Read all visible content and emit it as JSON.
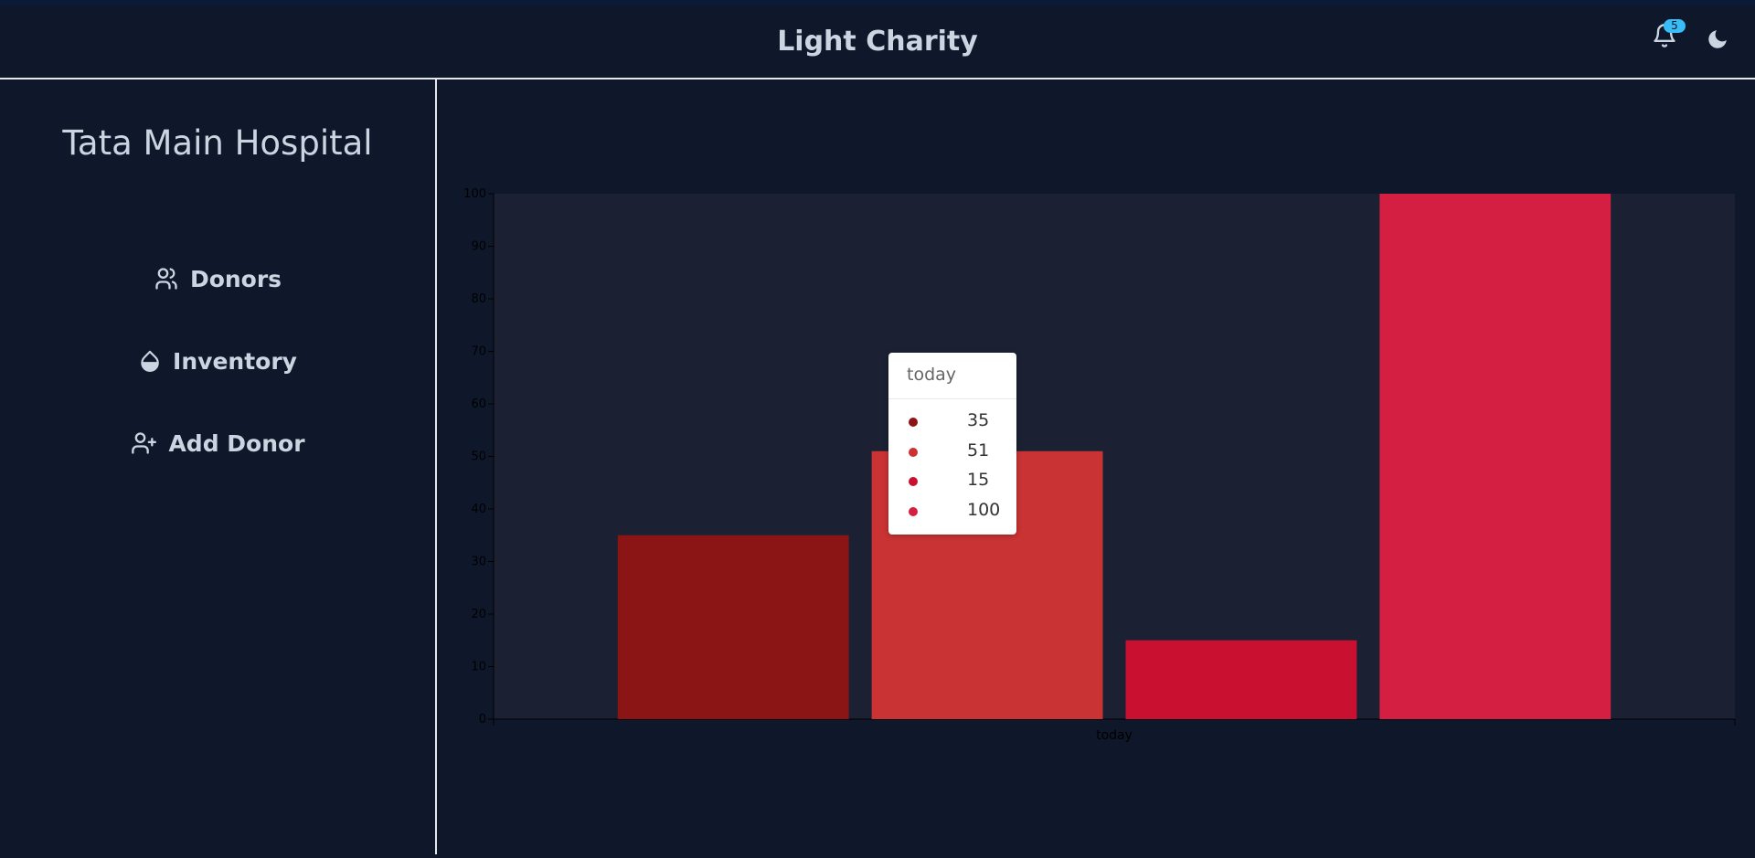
{
  "header": {
    "title": "Light Charity",
    "notification_count": "5",
    "icons": [
      "bell-icon",
      "moon-icon"
    ]
  },
  "sidebar": {
    "org_name": "Tata Main Hospital",
    "items": [
      {
        "label": "Donors",
        "icon": "users-icon"
      },
      {
        "label": "Inventory",
        "icon": "droplet-icon"
      },
      {
        "label": "Add Donor",
        "icon": "user-plus-icon"
      }
    ]
  },
  "chart_data": {
    "type": "bar",
    "categories": [
      "today"
    ],
    "series": [
      {
        "values": [
          35
        ],
        "color": "#8b1414"
      },
      {
        "values": [
          51
        ],
        "color": "#c93333"
      },
      {
        "values": [
          15
        ],
        "color": "#c91030"
      },
      {
        "values": [
          100
        ],
        "color": "#d41f42"
      }
    ],
    "ylim": [
      0,
      100
    ],
    "yticks": [
      "0",
      "10",
      "20",
      "30",
      "40",
      "50",
      "60",
      "70",
      "80",
      "90",
      "100"
    ],
    "plot_background": "#1b2133"
  },
  "tooltip": {
    "title": "today",
    "rows": [
      {
        "value": "35",
        "color": "#8b1414"
      },
      {
        "value": "51",
        "color": "#c93333"
      },
      {
        "value": "15",
        "color": "#c91030"
      },
      {
        "value": "100",
        "color": "#d41f42"
      }
    ]
  }
}
